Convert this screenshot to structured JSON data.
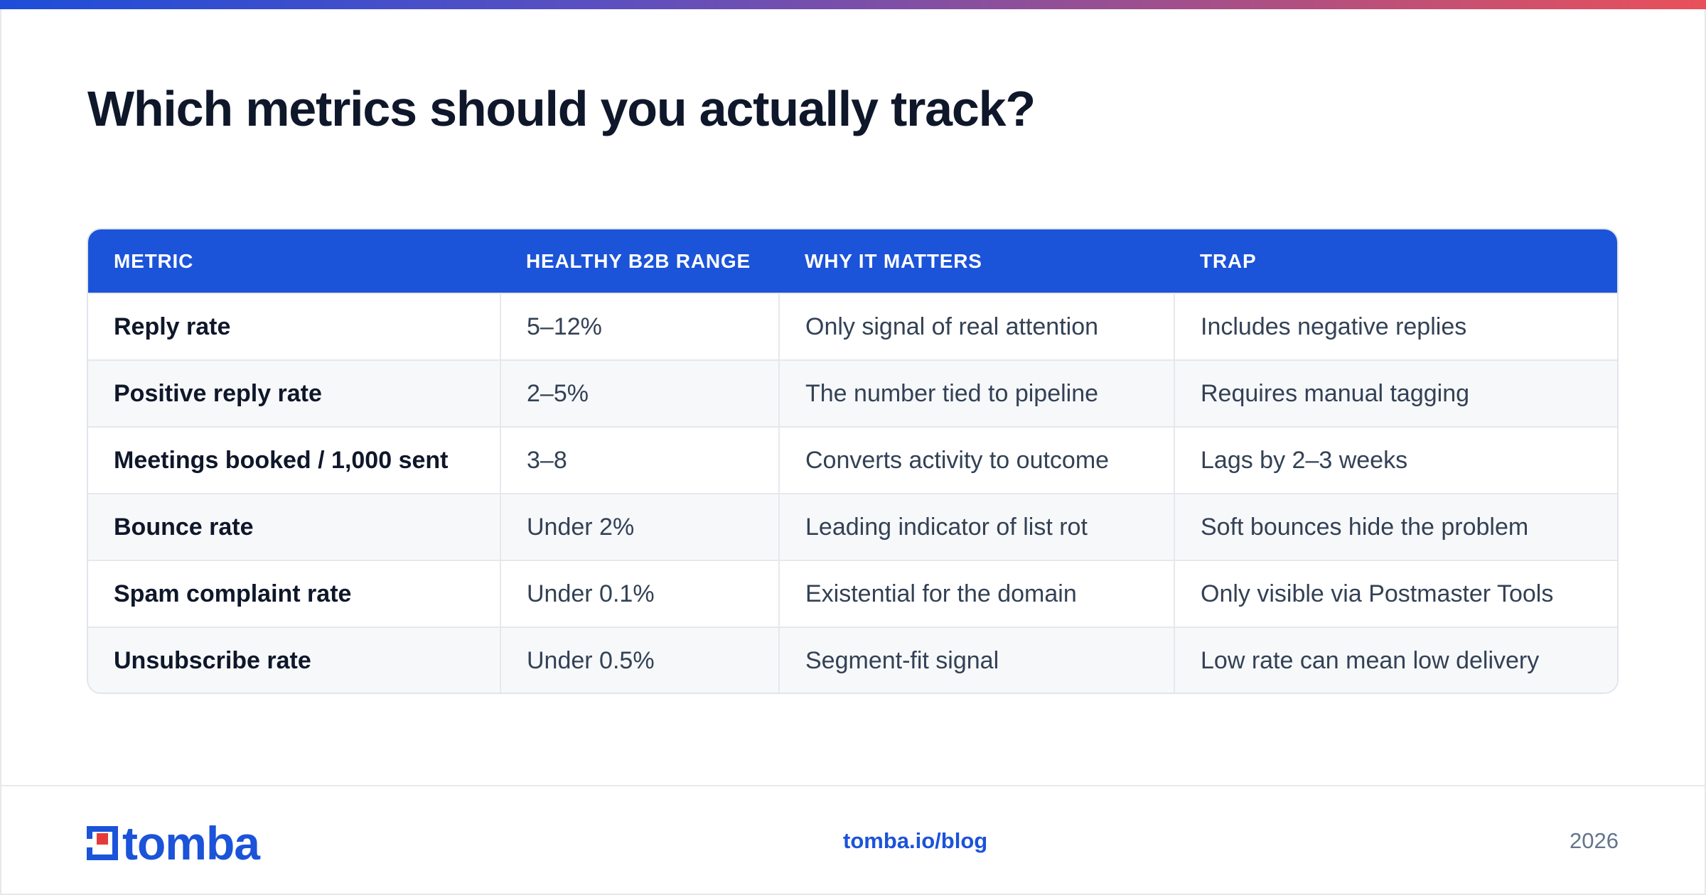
{
  "title": "Which metrics should you actually track?",
  "colors": {
    "accent": "#1b53d9",
    "logo_red": "#e63a3a",
    "gradient_start": "#1d4ed8",
    "gradient_end": "#e9505a"
  },
  "table": {
    "headers": [
      "METRIC",
      "HEALTHY B2B RANGE",
      "WHY IT MATTERS",
      "TRAP"
    ],
    "rows": [
      [
        "Reply rate",
        "5–12%",
        "Only signal of real attention",
        "Includes negative replies"
      ],
      [
        "Positive reply rate",
        "2–5%",
        "The number tied to pipeline",
        "Requires manual tagging"
      ],
      [
        "Meetings booked / 1,000 sent",
        "3–8",
        "Converts activity to outcome",
        "Lags by 2–3 weeks"
      ],
      [
        "Bounce rate",
        "Under 2%",
        "Leading indicator of list rot",
        "Soft bounces hide the problem"
      ],
      [
        "Spam complaint rate",
        "Under 0.1%",
        "Existential for the domain",
        "Only visible via Postmaster Tools"
      ],
      [
        "Unsubscribe rate",
        "Under 0.5%",
        "Segment-fit signal",
        "Low rate can mean low delivery"
      ]
    ]
  },
  "footer": {
    "logo_text": "tomba",
    "logo_icon": "tomba-logo-icon",
    "link": "tomba.io/blog",
    "year": "2026"
  }
}
